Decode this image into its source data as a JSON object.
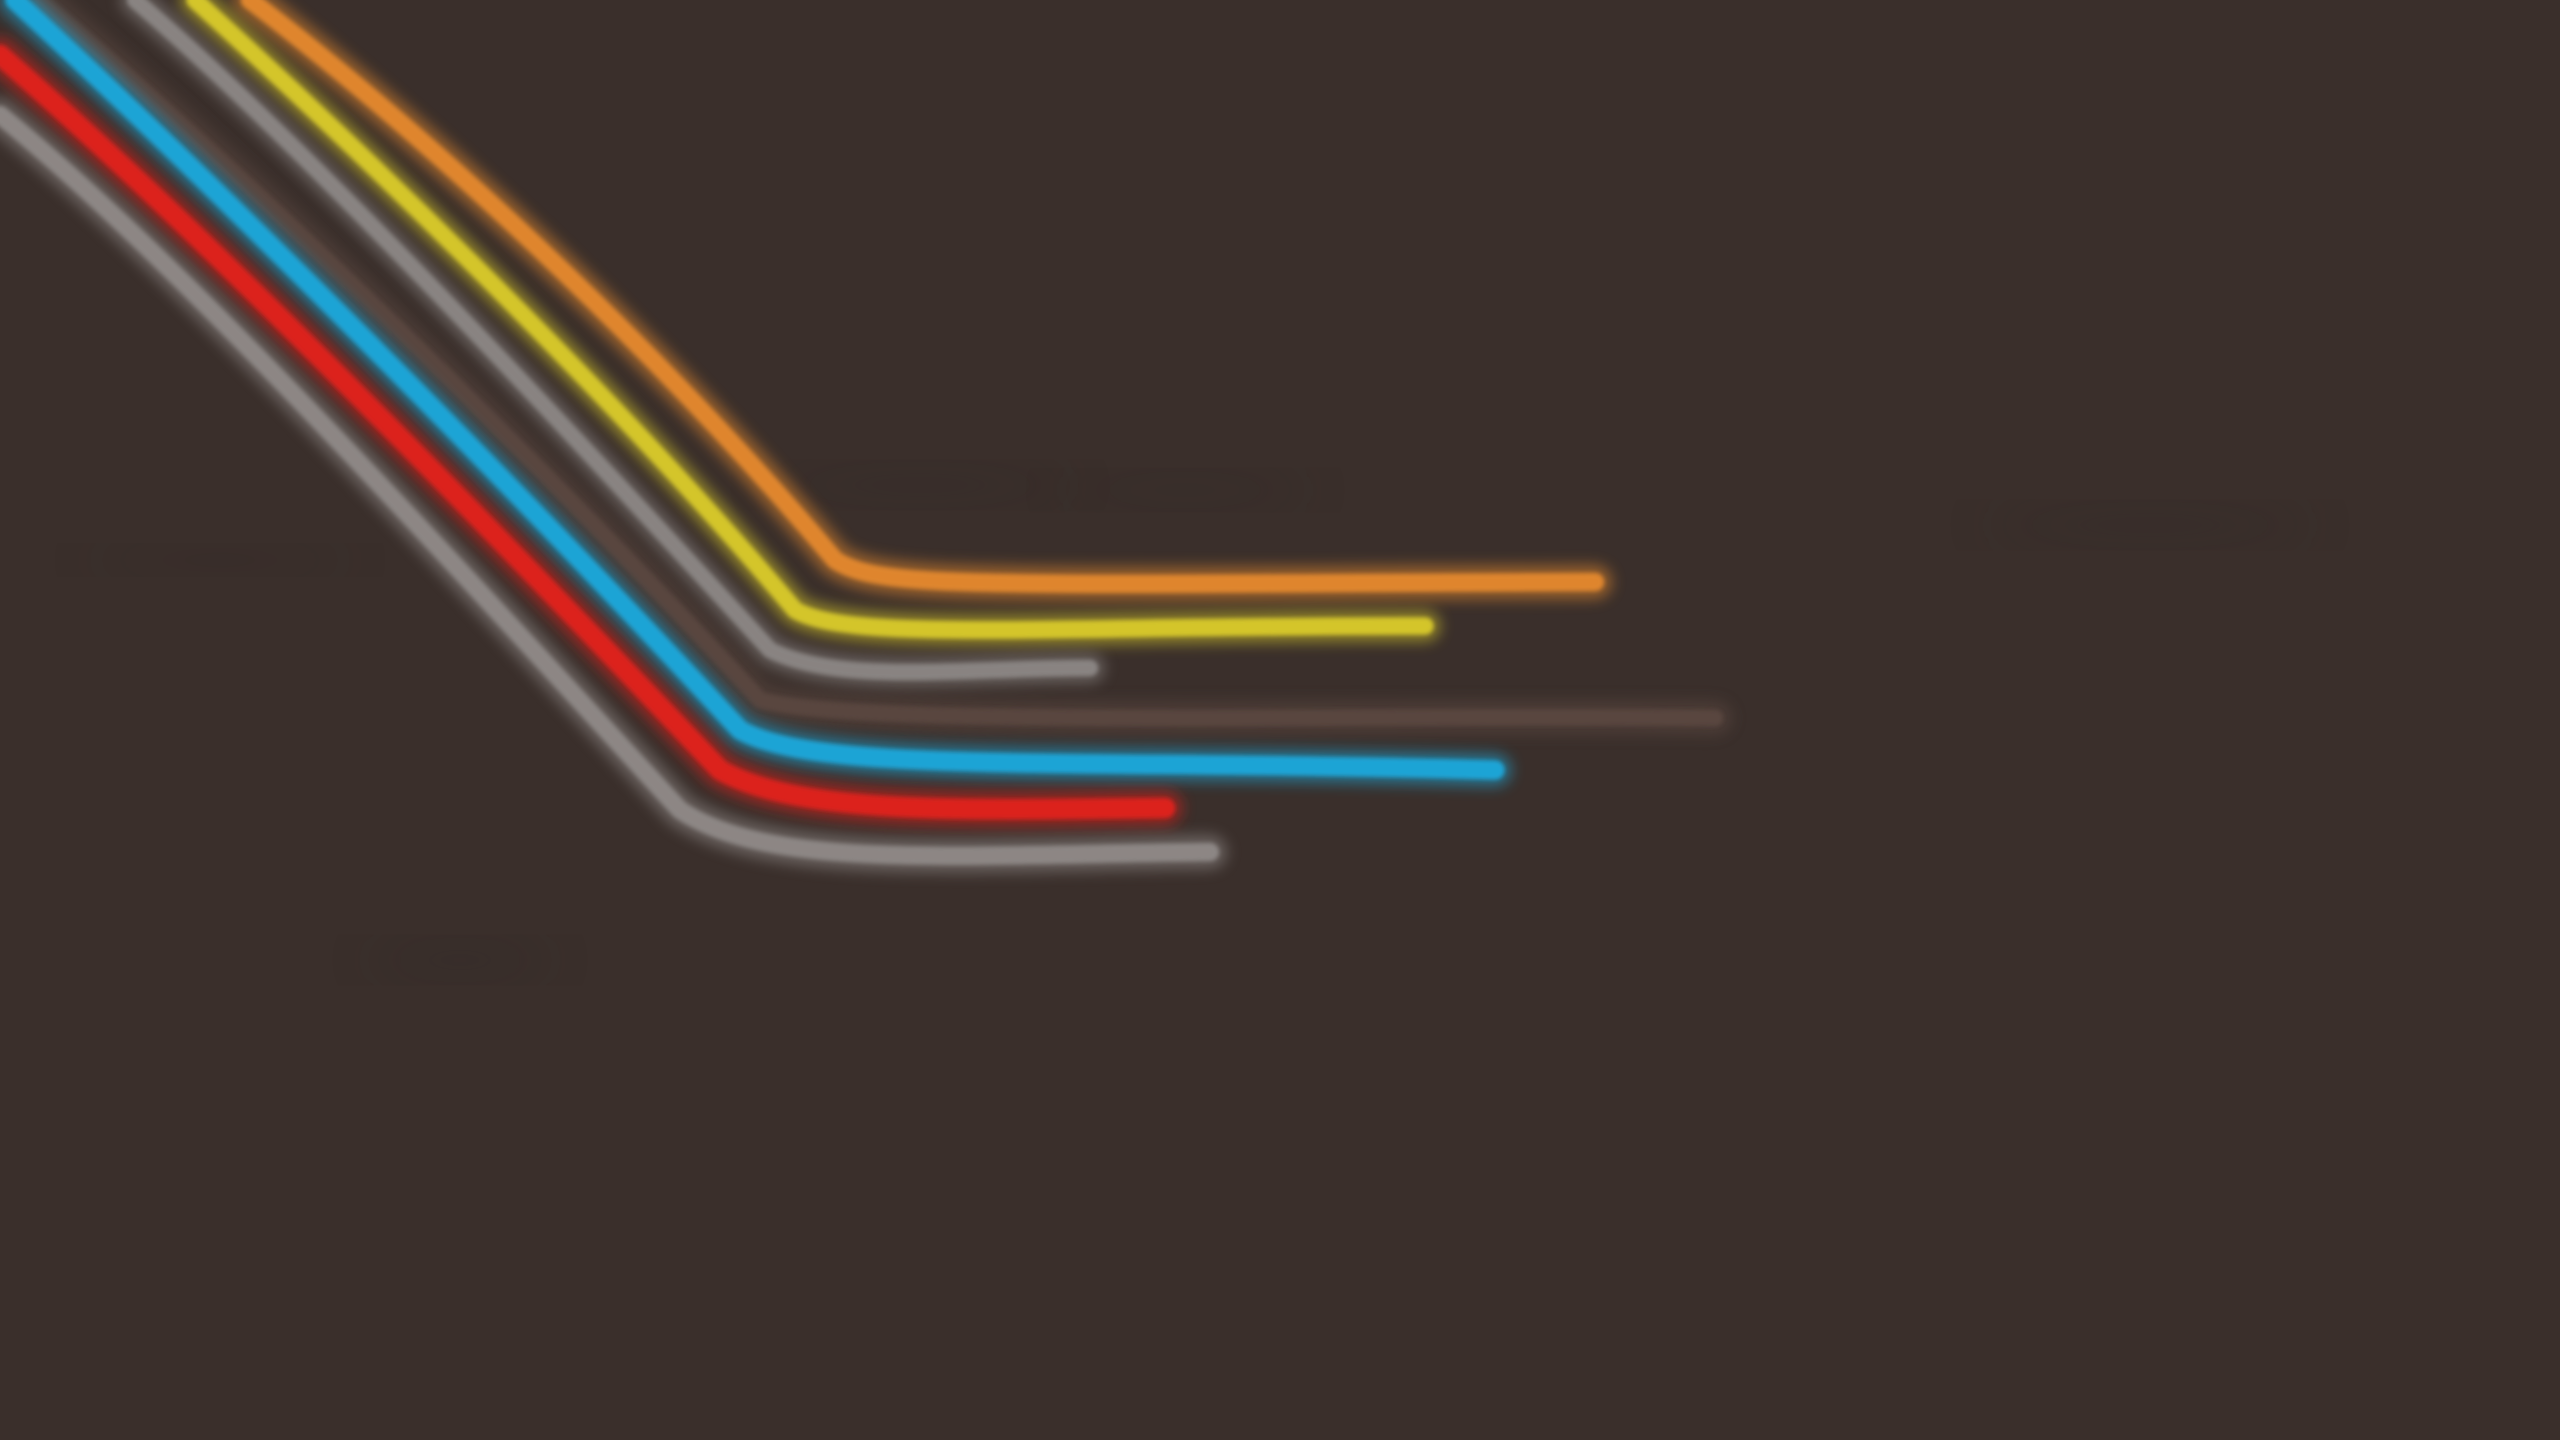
{
  "wallpaper": {
    "background_color": "#3a2f2b",
    "streaks": [
      {
        "name": "orange",
        "color": "#e3882f"
      },
      {
        "name": "yellow",
        "color": "#d8c92a"
      },
      {
        "name": "gray-upper",
        "color": "#8b8684"
      },
      {
        "name": "dark-brown",
        "color": "#5a4640"
      },
      {
        "name": "blue",
        "color": "#1fa7da"
      },
      {
        "name": "red",
        "color": "#e0221f"
      },
      {
        "name": "gray-lower",
        "color": "#8f8987"
      }
    ]
  }
}
